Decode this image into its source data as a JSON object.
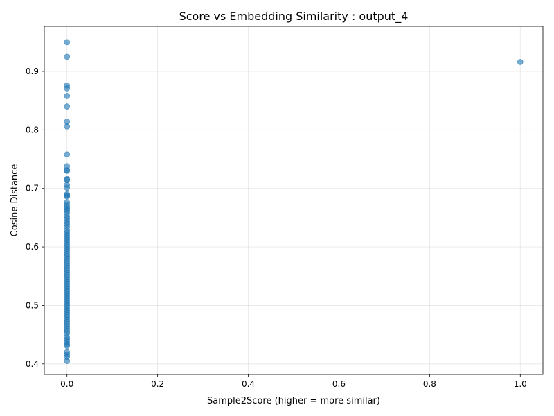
{
  "chart_data": {
    "type": "scatter",
    "title": "Score vs Embedding Similarity : output_4",
    "xlabel": "Sample2Score (higher = more similar)",
    "ylabel": "Cosine Distance",
    "xlim": [
      -0.05,
      1.05
    ],
    "ylim": [
      0.382,
      0.977
    ],
    "xticks": [
      0.0,
      0.2,
      0.4,
      0.6,
      0.8,
      1.0
    ],
    "xtick_labels": [
      "0.0",
      "0.2",
      "0.4",
      "0.6",
      "0.8",
      "1.0"
    ],
    "yticks": [
      0.4,
      0.5,
      0.6,
      0.7,
      0.8,
      0.9
    ],
    "ytick_labels": [
      "0.4",
      "0.5",
      "0.6",
      "0.7",
      "0.8",
      "0.9"
    ],
    "grid": true,
    "color": "#1f77b4",
    "series": [
      {
        "points": [
          [
            0,
            0.95
          ],
          [
            0,
            0.925
          ],
          [
            0,
            0.876
          ],
          [
            0,
            0.871
          ],
          [
            0,
            0.858
          ],
          [
            0,
            0.84
          ],
          [
            0,
            0.814
          ],
          [
            0,
            0.806
          ],
          [
            0,
            0.758
          ],
          [
            0,
            0.738
          ],
          [
            0,
            0.731
          ],
          [
            0,
            0.73
          ],
          [
            0,
            0.716
          ],
          [
            0,
            0.714
          ],
          [
            0,
            0.706
          ],
          [
            0,
            0.701
          ],
          [
            0,
            0.69
          ],
          [
            0,
            0.688
          ],
          [
            0,
            0.686
          ],
          [
            0,
            0.676
          ],
          [
            0,
            0.672
          ],
          [
            0,
            0.668
          ],
          [
            0,
            0.665
          ],
          [
            0,
            0.662
          ],
          [
            0,
            0.658
          ],
          [
            0,
            0.652
          ],
          [
            0,
            0.648
          ],
          [
            0,
            0.643
          ],
          [
            0,
            0.639
          ],
          [
            0,
            0.634
          ],
          [
            0,
            0.628
          ],
          [
            0,
            0.624
          ],
          [
            0,
            0.62
          ],
          [
            0,
            0.616
          ],
          [
            0,
            0.612
          ],
          [
            0,
            0.608
          ],
          [
            0,
            0.604
          ],
          [
            0,
            0.6
          ],
          [
            0,
            0.596
          ],
          [
            0,
            0.592
          ],
          [
            0,
            0.588
          ],
          [
            0,
            0.584
          ],
          [
            0,
            0.58
          ],
          [
            0,
            0.576
          ],
          [
            0,
            0.572
          ],
          [
            0,
            0.568
          ],
          [
            0,
            0.564
          ],
          [
            0,
            0.56
          ],
          [
            0,
            0.556
          ],
          [
            0,
            0.552
          ],
          [
            0,
            0.548
          ],
          [
            0,
            0.544
          ],
          [
            0,
            0.54
          ],
          [
            0,
            0.536
          ],
          [
            0,
            0.532
          ],
          [
            0,
            0.528
          ],
          [
            0,
            0.524
          ],
          [
            0,
            0.52
          ],
          [
            0,
            0.516
          ],
          [
            0,
            0.512
          ],
          [
            0,
            0.508
          ],
          [
            0,
            0.504
          ],
          [
            0,
            0.5
          ],
          [
            0,
            0.496
          ],
          [
            0,
            0.492
          ],
          [
            0,
            0.488
          ],
          [
            0,
            0.484
          ],
          [
            0,
            0.48
          ],
          [
            0,
            0.476
          ],
          [
            0,
            0.472
          ],
          [
            0,
            0.468
          ],
          [
            0,
            0.464
          ],
          [
            0,
            0.46
          ],
          [
            0,
            0.456
          ],
          [
            0,
            0.452
          ],
          [
            0,
            0.446
          ],
          [
            0,
            0.442
          ],
          [
            0,
            0.438
          ],
          [
            0,
            0.434
          ],
          [
            0,
            0.431
          ],
          [
            0,
            0.42
          ],
          [
            0,
            0.416
          ],
          [
            0,
            0.412
          ],
          [
            0,
            0.405
          ],
          [
            1.0,
            0.916
          ]
        ]
      }
    ]
  }
}
